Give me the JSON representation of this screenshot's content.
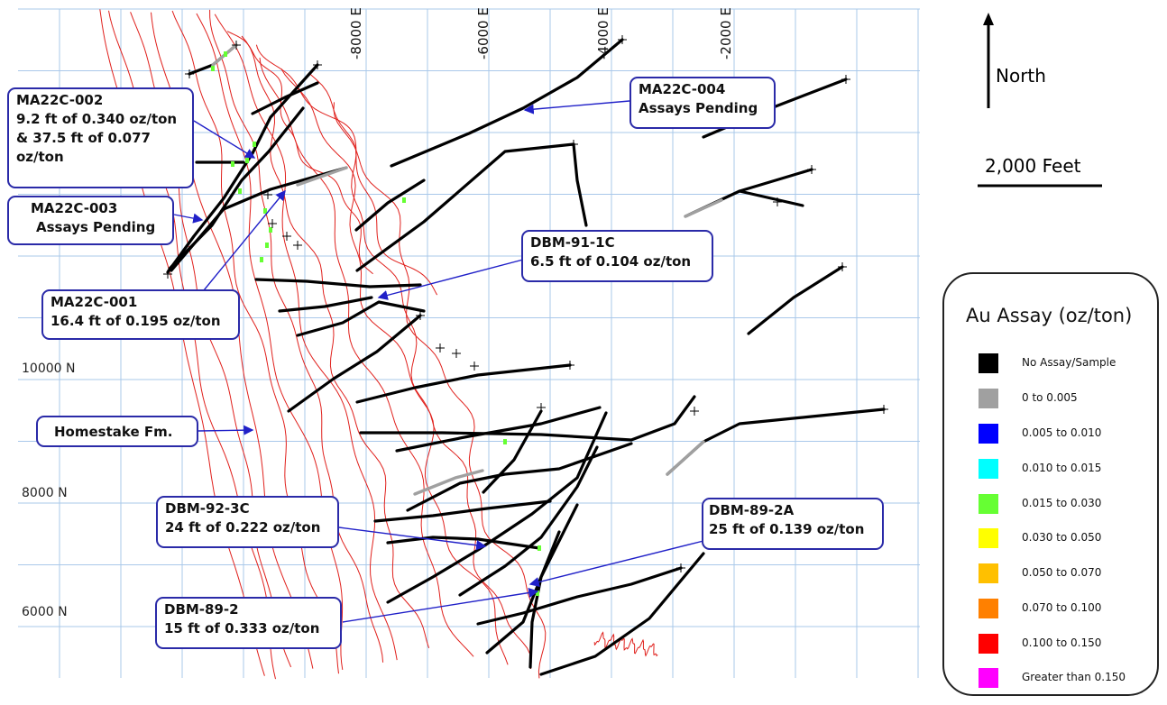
{
  "grid": {
    "easting_labels": [
      "-8000 E",
      "-6000 E",
      "-4000 E",
      "-2000 E"
    ],
    "northing_labels": [
      "10000 N",
      "8000 N",
      "6000 N"
    ]
  },
  "north_arrow": {
    "label": "North"
  },
  "scale_bar": {
    "label": "2,000 Feet"
  },
  "callouts": [
    {
      "id": "ma22c-002",
      "line1": "MA22C-002",
      "line2": "9.2 ft of 0.340 oz/ton",
      "line3": "& 37.5 ft of 0.077",
      "line4": "oz/ton"
    },
    {
      "id": "ma22c-003",
      "line1": "MA22C-003",
      "line2": "Assays Pending"
    },
    {
      "id": "ma22c-001",
      "line1": "MA22C-001",
      "line2": "16.4 ft of 0.195 oz/ton"
    },
    {
      "id": "homestake",
      "line1": "Homestake Fm."
    },
    {
      "id": "ma22c-004",
      "line1": "MA22C-004",
      "line2": "Assays Pending"
    },
    {
      "id": "dbm-91-1c",
      "line1": "DBM-91-1C",
      "line2": "6.5 ft of 0.104 oz/ton"
    },
    {
      "id": "dbm-92-3c",
      "line1": "DBM-92-3C",
      "line2": "24 ft of 0.222 oz/ton"
    },
    {
      "id": "dbm-89-2a",
      "line1": "DBM-89-2A",
      "line2": "25 ft of 0.139 oz/ton"
    },
    {
      "id": "dbm-89-2",
      "line1": "DBM-89-2",
      "line2": "15 ft of 0.333 oz/ton"
    }
  ],
  "legend": {
    "title": "Au Assay (oz/ton)",
    "items": [
      {
        "label": "No Assay/Sample",
        "color": "#000000"
      },
      {
        "label": "0 to 0.005",
        "color": "#a0a0a0"
      },
      {
        "label": "0.005  to 0.010",
        "color": "#0000ff"
      },
      {
        "label": "0.010  to 0.015",
        "color": "#00ffff"
      },
      {
        "label": "0.015  to 0.030",
        "color": "#66ff33"
      },
      {
        "label": "0.030  to 0.050",
        "color": "#ffff00"
      },
      {
        "label": "0.050  to 0.070",
        "color": "#ffc000"
      },
      {
        "label": "0.070  to 0.100",
        "color": "#ff8000"
      },
      {
        "label": "0.100  to 0.150",
        "color": "#ff0000"
      },
      {
        "label": "Greater than 0.150",
        "color": "#ff00ff"
      }
    ]
  },
  "colors": {
    "grid": "#a9c8ea",
    "formation": "#e0201c",
    "drillhole": "#000000",
    "leader": "#2020c8",
    "callout_border": "#2a2aa8"
  }
}
